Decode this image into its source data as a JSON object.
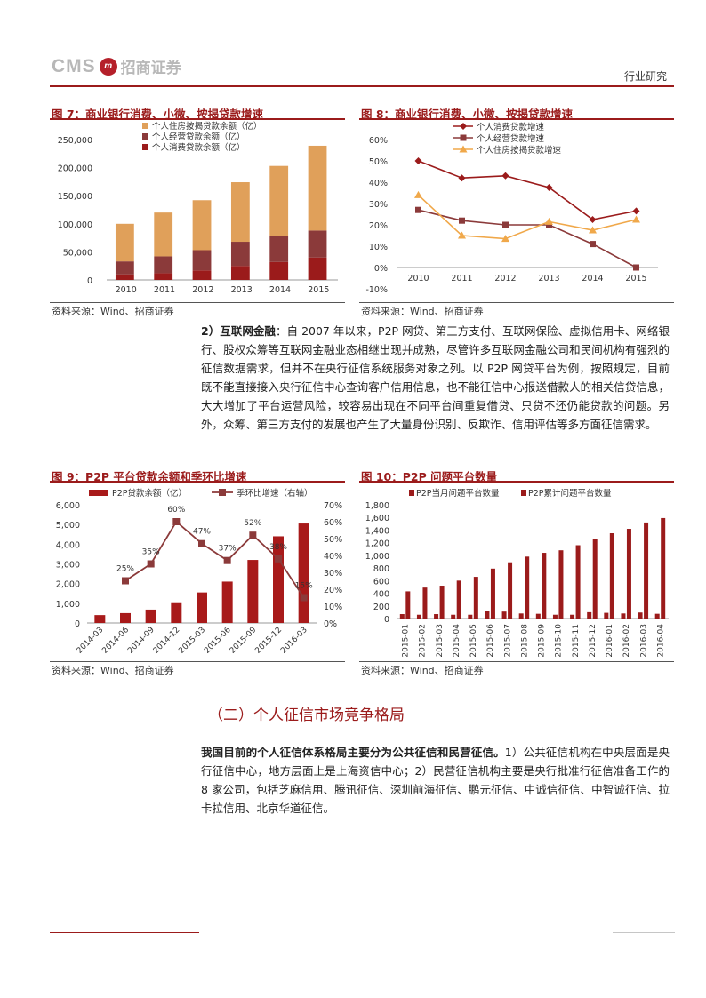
{
  "header": {
    "logo_text": "CMS",
    "logo_badge": "m",
    "logo_cn": "招商证券",
    "report_type": "行业研究"
  },
  "figures": {
    "fig7": {
      "title": "图 7：商业银行消费、小微、按揭贷款增速",
      "source": "资料来源：Wind、招商证券"
    },
    "fig8": {
      "title": "图 8：商业银行消费、小微、按揭贷款增速",
      "source": "资料来源：Wind、招商证券"
    },
    "fig9": {
      "title": "图 9：P2P 平台贷款余额和季环比增速",
      "source": "资料来源：Wind、招商证券"
    },
    "fig10": {
      "title": "图 10：P2P 问题平台数量",
      "source": "资料来源：Wind、招商证券"
    }
  },
  "paragraph1": {
    "num": "2）",
    "bold": "互联网金融",
    "text": "：自 2007 年以来，P2P 网贷、第三方支付、互联网保险、虚拟信用卡、网络银行、股权众筹等互联网金融业态相继出现并成熟，尽管许多互联网金融公司和民间机构有强烈的征信数据需求，但并不在央行征信系统服务对象之列。以 P2P 网贷平台为例，按照规定，目前既不能直接接入央行征信中心查询客户信用信息，也不能征信中心报送借款人的相关信贷信息，大大增加了平台运营风险，较容易出现在不同平台间重复借贷、只贷不还仍能贷款的问题。另外，众筹、第三方支付的发展也产生了大量身份识别、反欺诈、信用评估等多方面征信需求。"
  },
  "section_title": "（二）个人征信市场竞争格局",
  "paragraph2": {
    "bold": "我国目前的个人征信体系格局主要分为公共征信和民营征信。",
    "text": "1）公共征信机构在中央层面是央行征信中心，地方层面上是上海资信中心；2）民营征信机构主要是央行批准行征信准备工作的 8 家公司，包括芝麻信用、腾讯征信、深圳前海征信、鹏元征信、中诚信征信、中智诚征信、拉卡拉信用、北京华道征信。"
  },
  "chart_data": [
    {
      "id": "fig7",
      "type": "bar",
      "stacked": true,
      "categories": [
        "2010",
        "2011",
        "2012",
        "2013",
        "2014",
        "2015"
      ],
      "series": [
        {
          "name": "个人消费贷款余额（亿）",
          "color": "#9b1b1b",
          "values": [
            10000,
            12000,
            17000,
            25000,
            32000,
            40000
          ]
        },
        {
          "name": "个人经营贷款余额（亿）",
          "color": "#8b3a3a",
          "values": [
            23000,
            30000,
            36000,
            43000,
            47000,
            48000
          ]
        },
        {
          "name": "个人住房按揭贷款余额（亿）",
          "color": "#e0a05a",
          "values": [
            67000,
            78000,
            89000,
            106000,
            124000,
            151000
          ]
        }
      ],
      "ylim": [
        0,
        250000
      ],
      "yticks": [
        "0",
        "50,000",
        "100,000",
        "150,000",
        "200,000",
        "250,000"
      ],
      "legend": "top-left"
    },
    {
      "id": "fig8",
      "type": "line",
      "categories": [
        "2010",
        "2011",
        "2012",
        "2013",
        "2014",
        "2015"
      ],
      "series": [
        {
          "name": "个人消费贷款增速",
          "color": "#9b1b1b",
          "marker": "diamond",
          "values": [
            0.5,
            0.42,
            0.43,
            0.375,
            0.225,
            0.265
          ]
        },
        {
          "name": "个人经营贷款增速",
          "color": "#8b3a3a",
          "marker": "square",
          "values": [
            0.27,
            0.22,
            0.2,
            0.2,
            0.11,
            0.0
          ]
        },
        {
          "name": "个人住房按揭贷款增速",
          "color": "#f0a84a",
          "marker": "triangle",
          "values": [
            0.34,
            0.15,
            0.135,
            0.215,
            0.175,
            0.225
          ]
        }
      ],
      "ylim": [
        -0.1,
        0.6
      ],
      "yticks": [
        "-10%",
        "0%",
        "10%",
        "20%",
        "30%",
        "40%",
        "50%",
        "60%"
      ],
      "legend": "top-left"
    },
    {
      "id": "fig9",
      "type": "bar-line",
      "categories": [
        "2014-03",
        "2014-06",
        "2014-09",
        "2014-12",
        "2015-03",
        "2015-06",
        "2015-09",
        "2015-12",
        "2016-03"
      ],
      "series": [
        {
          "name": "P2P贷款余额（亿）",
          "color": "#a81a1a",
          "axis": "left",
          "values": [
            400,
            500,
            680,
            1050,
            1550,
            2100,
            3200,
            4400,
            5050
          ]
        },
        {
          "name": "季环比增速（右轴）",
          "color": "#8b3a3a",
          "axis": "right",
          "values": [
            null,
            0.25,
            0.35,
            0.6,
            0.47,
            0.37,
            0.52,
            0.38,
            0.15
          ]
        }
      ],
      "data_labels": [
        "",
        "25%",
        "35%",
        "60%",
        "47%",
        "37%",
        "52%",
        "38%",
        "15%"
      ],
      "ylim": [
        0,
        6000
      ],
      "yticks": [
        "0",
        "1,000",
        "2,000",
        "3,000",
        "4,000",
        "5,000",
        "6,000"
      ],
      "ylim_right": [
        0,
        0.7
      ],
      "yticks_right": [
        "0%",
        "10%",
        "20%",
        "30%",
        "40%",
        "50%",
        "60%",
        "70%"
      ],
      "legend": "top"
    },
    {
      "id": "fig10",
      "type": "bar",
      "categories": [
        "2015-01",
        "2015-02",
        "2015-03",
        "2015-04",
        "2015-05",
        "2015-06",
        "2015-07",
        "2015-08",
        "2015-09",
        "2015-10",
        "2015-11",
        "2015-12",
        "2016-01",
        "2016-02",
        "2016-03",
        "2016-04"
      ],
      "series": [
        {
          "name": "P2P当月问题平台数量",
          "color": "#9b1b1b",
          "values": [
            70,
            60,
            70,
            60,
            60,
            125,
            110,
            80,
            75,
            60,
            60,
            100,
            90,
            80,
            95,
            75
          ]
        },
        {
          "name": "P2P累计问题平台数量",
          "color": "#9b1b1b",
          "values": [
            430,
            490,
            520,
            600,
            660,
            790,
            890,
            980,
            1040,
            1080,
            1160,
            1260,
            1350,
            1420,
            1520,
            1590
          ]
        }
      ],
      "ylim": [
        0,
        1800
      ],
      "yticks": [
        "0",
        "200",
        "400",
        "600",
        "800",
        "1,000",
        "1,200",
        "1,400",
        "1,600",
        "1,800"
      ],
      "legend": "top"
    }
  ]
}
